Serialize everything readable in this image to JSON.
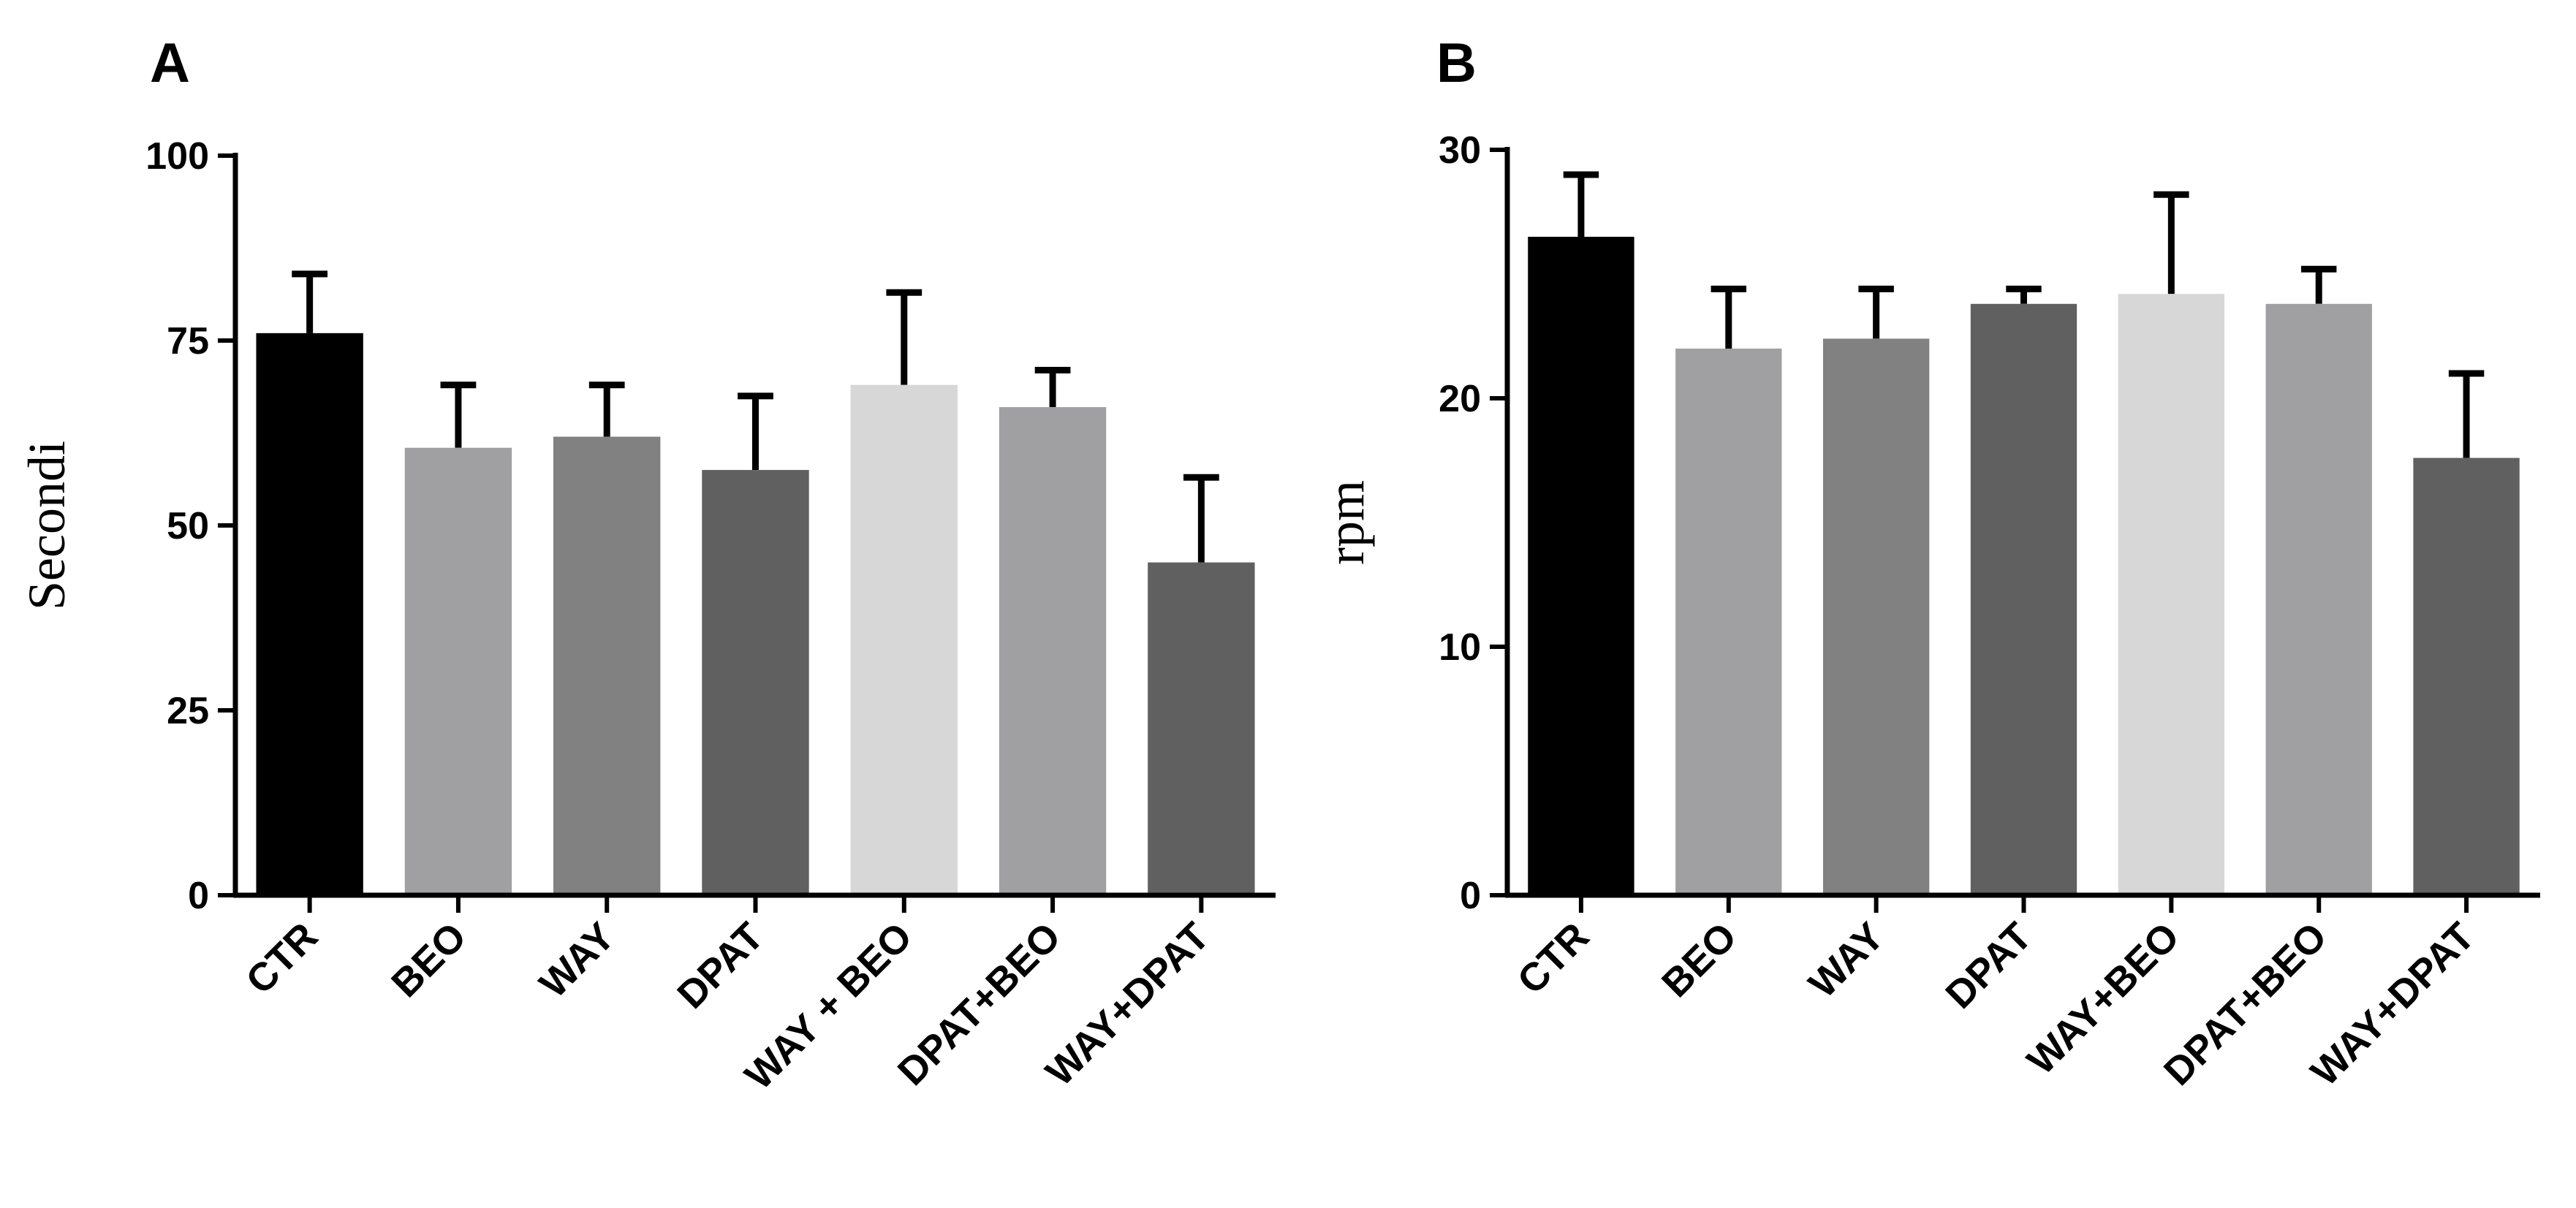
{
  "chart_data": [
    {
      "type": "bar",
      "panel_label": "A",
      "title": "",
      "xlabel": "",
      "ylabel": "Secondi",
      "ylim": [
        0,
        100
      ],
      "yticks": [
        0,
        25,
        50,
        75,
        100
      ],
      "ytick_labels": [
        "0",
        "25",
        "50",
        "75",
        "100"
      ],
      "categories": [
        "CTR",
        "BEO",
        "WAY",
        "DPAT",
        "WAY + BEO",
        "DPAT+BEO",
        "WAY+DPAT"
      ],
      "values": [
        76,
        60.5,
        62,
        57.5,
        69,
        66,
        45
      ],
      "errors": [
        8,
        8.5,
        7,
        10,
        12.5,
        5,
        11.5
      ],
      "colors": [
        "#000000",
        "#a0a0a3",
        "#818181",
        "#606060",
        "#d7d7d7",
        "#a0a0a3",
        "#606060"
      ],
      "grid": false
    },
    {
      "type": "bar",
      "panel_label": "B",
      "title": "",
      "xlabel": "",
      "ylabel": "rpm",
      "ylim": [
        0,
        30
      ],
      "yticks": [
        0,
        10,
        20,
        30
      ],
      "ytick_labels": [
        "0",
        "10",
        "20",
        "30"
      ],
      "categories": [
        "CTR",
        "BEO",
        "WAY",
        "DPAT",
        "WAY+BEO",
        "DPAT+BEO",
        "WAY+DPAT"
      ],
      "values": [
        26.5,
        22,
        22.4,
        23.8,
        24.2,
        23.8,
        17.6
      ],
      "errors": [
        2.5,
        2.4,
        2,
        0.6,
        4,
        1.4,
        3.4
      ],
      "colors": [
        "#000000",
        "#a0a0a3",
        "#818181",
        "#606060",
        "#d7d7d7",
        "#a0a0a3",
        "#606060"
      ],
      "grid": false
    }
  ]
}
